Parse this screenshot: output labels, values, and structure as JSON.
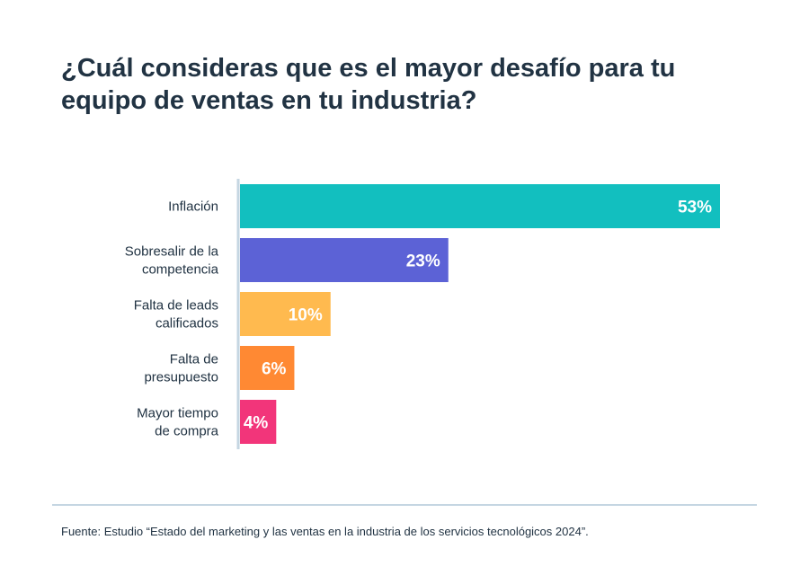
{
  "header": {
    "title": "¿Cuál consideras que es el mayor desafío para tu equipo de ventas en tu industria?"
  },
  "footer": {
    "source": "Fuente: Estudio “Estado del marketing y las ventas en la industria de los servicios tecnológicos 2024”."
  },
  "chart_data": {
    "type": "bar",
    "orientation": "horizontal",
    "title": "¿Cuál consideras que es el mayor desafío para tu equipo de ventas en tu industria?",
    "categories": [
      [
        "Inflación"
      ],
      [
        "Sobresalir de la",
        "competencia"
      ],
      [
        "Falta de leads",
        "calificados"
      ],
      [
        "Falta de",
        "presupuesto"
      ],
      [
        "Mayor tiempo",
        "de compra"
      ]
    ],
    "values": [
      53,
      23,
      10,
      6,
      4
    ],
    "value_labels": [
      "53%",
      "23%",
      "10%",
      "6%",
      "4%"
    ],
    "colors": [
      "#12bfbf",
      "#5c62d6",
      "#ffba4f",
      "#ff8933",
      "#f2357a"
    ],
    "axis_color": "#c5d6e2",
    "xlim": [
      0,
      53
    ],
    "grid": false,
    "legend": "none"
  }
}
